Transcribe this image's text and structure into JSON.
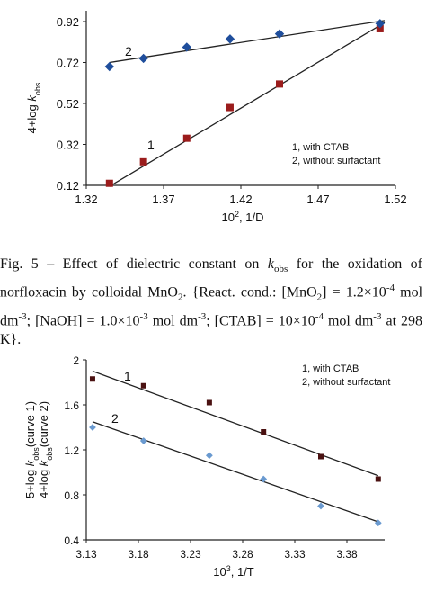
{
  "charts": [
    {
      "type": "scatter",
      "xlabel": "10², 1/D",
      "ylabel": "4+log k_obs",
      "xlim": [
        1.32,
        1.52
      ],
      "ylim": [
        0.12,
        0.92
      ],
      "xticks": [
        "1.32",
        "1.37",
        "1.42",
        "1.47",
        "1.52"
      ],
      "yticks": [
        "0.12",
        "0.32",
        "0.52",
        "0.72",
        "0.92"
      ],
      "legend": [
        "1, with CTAB",
        "2, without surfactant"
      ],
      "series": [
        {
          "name": "1",
          "color": "#9b1c1c",
          "marker": "square",
          "x": [
            1.335,
            1.357,
            1.385,
            1.413,
            1.445,
            1.51
          ],
          "y": [
            0.13,
            0.235,
            0.35,
            0.5,
            0.615,
            0.885
          ],
          "fit": [
            [
              1.335,
              0.115
            ],
            [
              1.513,
              0.915
            ]
          ]
        },
        {
          "name": "2",
          "color": "#1f4e9c",
          "marker": "diamond",
          "x": [
            1.335,
            1.357,
            1.385,
            1.413,
            1.445,
            1.51
          ],
          "y": [
            0.7,
            0.74,
            0.795,
            0.835,
            0.86,
            0.91
          ],
          "fit": [
            [
              1.335,
              0.72
            ],
            [
              1.513,
              0.925
            ]
          ]
        }
      ]
    },
    {
      "type": "scatter",
      "xlabel": "10³, 1/T",
      "ylabel_lines": [
        "5+log k_obs(curve 1)",
        "4+log k_obs(curve 2)"
      ],
      "xlim": [
        3.13,
        3.43
      ],
      "ylim": [
        0.4,
        2.0
      ],
      "xticks": [
        "3.13",
        "3.18",
        "3.23",
        "3.28",
        "3.33",
        "3.38"
      ],
      "yticks": [
        "0.4",
        "0.8",
        "1.2",
        "1.6",
        "2"
      ],
      "legend": [
        "1, with CTAB",
        "2, without surfactant"
      ],
      "series": [
        {
          "name": "1",
          "color": "#4a1111",
          "marker": "square",
          "x": [
            3.136,
            3.185,
            3.248,
            3.3,
            3.355,
            3.41
          ],
          "y": [
            1.83,
            1.77,
            1.62,
            1.36,
            1.14,
            0.94
          ],
          "fit": [
            [
              3.136,
              1.9
            ],
            [
              3.41,
              0.97
            ]
          ]
        },
        {
          "name": "2",
          "color": "#6a9ad0",
          "marker": "diamond",
          "x": [
            3.136,
            3.185,
            3.248,
            3.3,
            3.355,
            3.41
          ],
          "y": [
            1.4,
            1.28,
            1.15,
            0.94,
            0.7,
            0.55
          ],
          "fit": [
            [
              3.136,
              1.45
            ],
            [
              3.41,
              0.56
            ]
          ]
        }
      ]
    }
  ],
  "caption": {
    "text": "Fig. 5 – Effect of dielectric constant on kobs for the oxidation of norfloxacin by colloidal MnO2. {React. cond.: [MnO2] = 1.2×10⁻⁴ mol dm⁻³; [NaOH] = 1.0×10⁻³ mol dm⁻³; [CTAB] = 10×10⁻⁴ mol dm⁻³ at 298 K}."
  },
  "chart_data": [
    {
      "type": "scatter",
      "title": "",
      "xlabel": "10², 1/D",
      "ylabel": "4+log k_obs",
      "xlim": [
        1.32,
        1.52
      ],
      "ylim": [
        0.12,
        0.92
      ],
      "legend": "right",
      "series": [
        {
          "name": "1",
          "x": [
            1.335,
            1.357,
            1.385,
            1.413,
            1.445,
            1.51
          ],
          "y": [
            0.13,
            0.235,
            0.35,
            0.5,
            0.615,
            0.885
          ]
        },
        {
          "name": "2",
          "x": [
            1.335,
            1.357,
            1.385,
            1.413,
            1.445,
            1.51
          ],
          "y": [
            0.7,
            0.74,
            0.795,
            0.835,
            0.86,
            0.91
          ]
        }
      ]
    },
    {
      "type": "scatter",
      "title": "",
      "xlabel": "10³, 1/T",
      "ylabel": "5+log k_obs(curve 1) / 4+log k_obs(curve 2)",
      "xlim": [
        3.13,
        3.43
      ],
      "ylim": [
        0.4,
        2.0
      ],
      "legend": "top-right",
      "series": [
        {
          "name": "1",
          "x": [
            3.136,
            3.185,
            3.248,
            3.3,
            3.355,
            3.41
          ],
          "y": [
            1.83,
            1.77,
            1.62,
            1.36,
            1.14,
            0.94
          ]
        },
        {
          "name": "2",
          "x": [
            3.136,
            3.185,
            3.248,
            3.3,
            3.355,
            3.41
          ],
          "y": [
            1.4,
            1.28,
            1.15,
            0.94,
            0.7,
            0.55
          ]
        }
      ]
    }
  ]
}
